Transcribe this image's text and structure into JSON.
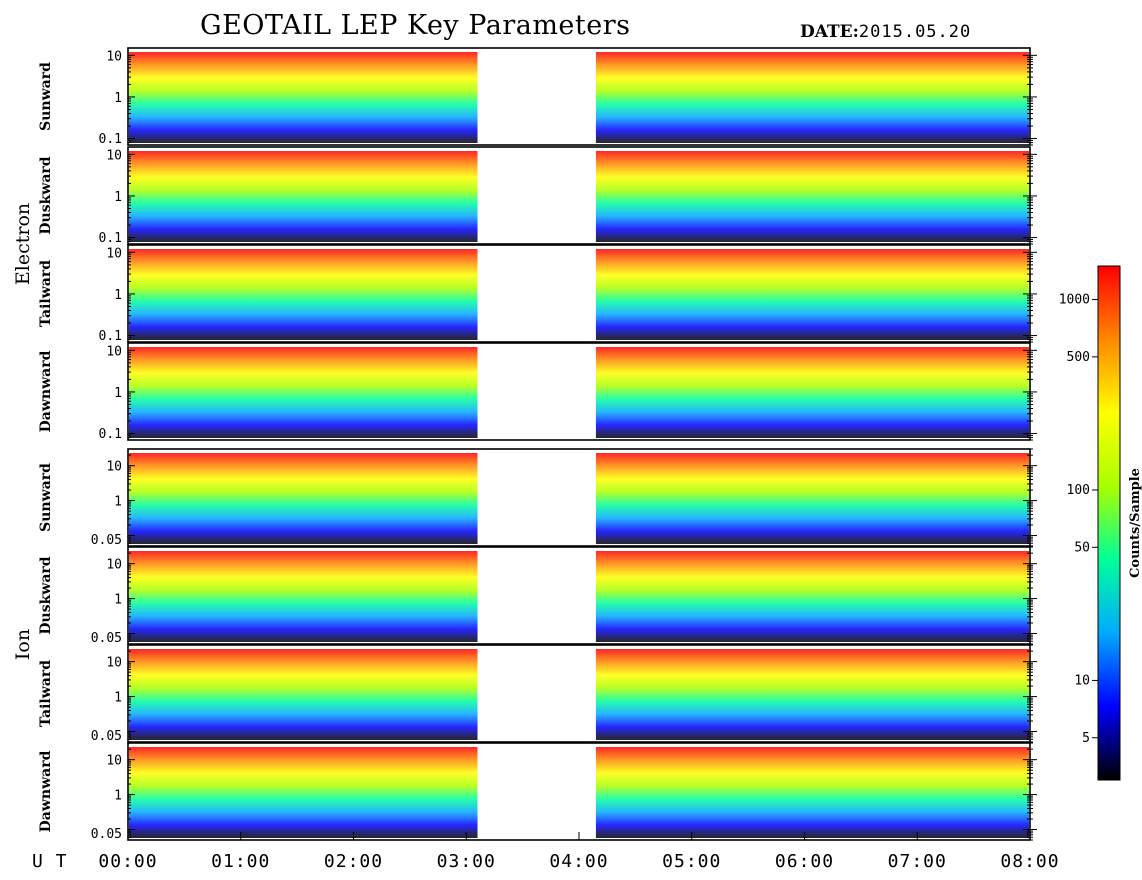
{
  "header": {
    "title": "GEOTAIL LEP Key Parameters",
    "date_label": "DATE:",
    "date_value": "2015.05.20"
  },
  "chart_data": {
    "type": "heatmap",
    "title": "GEOTAIL LEP Key Parameters",
    "x_axis_label": "U T",
    "x_ticks": [
      "00:00",
      "01:00",
      "02:00",
      "03:00",
      "04:00",
      "05:00",
      "06:00",
      "07:00",
      "08:00"
    ],
    "x_range_hours": [
      0,
      8
    ],
    "data_gap_hours": [
      3.1,
      4.15
    ],
    "groups": [
      {
        "name": "Electron",
        "y_scale": "log",
        "y_range": [
          0.07,
          15
        ],
        "y_ticks": [
          "10",
          "1",
          "0.1"
        ],
        "y_tick_values": [
          10,
          1,
          0.1
        ],
        "panels": [
          "Sunward",
          "Duskward",
          "Tailward",
          "Dawnward"
        ]
      },
      {
        "name": "Ion",
        "y_scale": "log",
        "y_range": [
          0.05,
          30
        ],
        "y_ticks": [
          "10",
          "1",
          "0.05"
        ],
        "y_tick_values": [
          10,
          1,
          0.05
        ],
        "panels": [
          "Sunward",
          "Duskward",
          "Tailward",
          "Dawnward"
        ]
      }
    ],
    "colorbar": {
      "label": "Counts/Sample",
      "scale": "log",
      "range": [
        3,
        1500
      ],
      "ticks": [
        "1000",
        "500",
        "100",
        "50",
        "10",
        "5"
      ],
      "tick_values": [
        1000,
        500,
        100,
        50,
        10,
        5
      ],
      "colors": [
        "#000000",
        "#0000ff",
        "#00aaff",
        "#00ff99",
        "#aaff00",
        "#ffff00",
        "#ff8800",
        "#ff0000"
      ]
    }
  }
}
